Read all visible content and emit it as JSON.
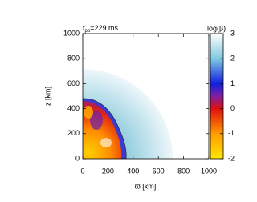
{
  "chart_data": {
    "type": "heatmap",
    "title_parts": [
      "t",
      "pb",
      "=229 ms"
    ],
    "xlabel": "ϖ [km]",
    "ylabel": "z [km]",
    "xlim": [
      0,
      1000
    ],
    "ylim": [
      0,
      1000
    ],
    "xticks": [
      0,
      200,
      400,
      600,
      800,
      1000
    ],
    "yticks": [
      0,
      200,
      400,
      600,
      800,
      1000
    ],
    "colorbar": {
      "label": "log(β)",
      "lim": [
        -2,
        3
      ],
      "ticks": [
        -2,
        -1,
        0,
        1,
        2,
        3
      ]
    }
  }
}
